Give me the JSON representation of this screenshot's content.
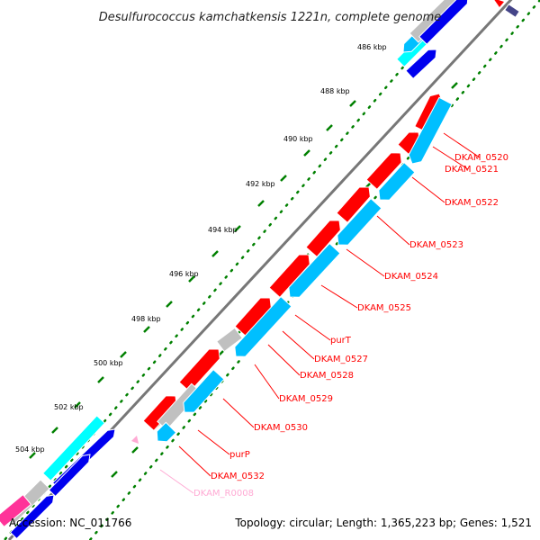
{
  "title": "Desulfurococcus kamchatkensis 1221n, complete genome",
  "colors": {
    "forward_cds": "#ff0000",
    "reverse_cds": "#00bfff",
    "other_forward": "#0000ee",
    "grey_feature": "#c0c0c0",
    "cyan_feature": "#00ffff",
    "pink_feature": "#ffaad4",
    "tick_dots": "#008000",
    "backbone": "#666666",
    "label_line": "#ff0000"
  },
  "scale_ticks": [
    "486 kbp",
    "488 kbp",
    "490 kbp",
    "492 kbp",
    "494 kbp",
    "496 kbp",
    "498 kbp",
    "500 kbp",
    "502 kbp",
    "504 kbp"
  ],
  "gene_labels": [
    {
      "name": "DKAM_0520",
      "color": "#ff0000"
    },
    {
      "name": "DKAM_0521",
      "color": "#ff0000"
    },
    {
      "name": "DKAM_0522",
      "color": "#ff0000"
    },
    {
      "name": "DKAM_0523",
      "color": "#ff0000"
    },
    {
      "name": "DKAM_0524",
      "color": "#ff0000"
    },
    {
      "name": "DKAM_0525",
      "color": "#ff0000"
    },
    {
      "name": "purT",
      "color": "#ff0000"
    },
    {
      "name": "DKAM_0527",
      "color": "#ff0000"
    },
    {
      "name": "DKAM_0528",
      "color": "#ff0000"
    },
    {
      "name": "DKAM_0529",
      "color": "#ff0000"
    },
    {
      "name": "DKAM_0530",
      "color": "#ff0000"
    },
    {
      "name": "purP",
      "color": "#ff0000"
    },
    {
      "name": "DKAM_0532",
      "color": "#ff0000"
    },
    {
      "name": "DKAM_R0008",
      "color": "#ffaad4"
    }
  ],
  "footer": {
    "accession": "Accession: NC_011766",
    "topology": "Topology: circular; Length: 1,365,223 bp; Genes: 1,521"
  }
}
